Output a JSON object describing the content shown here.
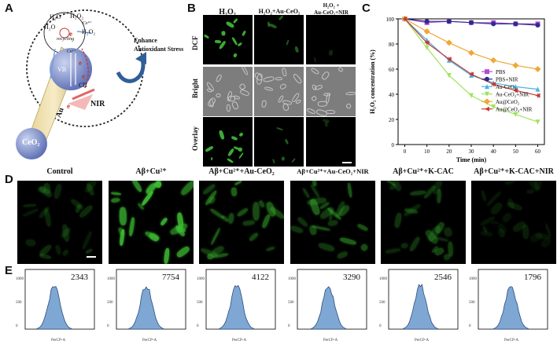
{
  "panel_labels": {
    "A": "A",
    "B": "B",
    "C": "C",
    "D": "D",
    "E": "E"
  },
  "panelA": {
    "texts": {
      "h2o_1": "H₂O",
      "h2o2_1": "H₂O₂",
      "h2o_2": "H₂O",
      "h2o2_2": "H₂O₂",
      "cb": "CB",
      "vb": "VB",
      "ce_ion": "Ce⁴⁺",
      "ce_ion2": "Ce³⁺",
      "cycle": "recycling",
      "enhance": "Enhance",
      "antioxidant": "Antioxidant Stress",
      "nir": "NIR",
      "au": "Au",
      "ceo2": "CeO₂",
      "electron": "e"
    }
  },
  "panelB": {
    "columns": [
      "H₂O₂",
      "H₂O₂+Au-CeO₂",
      "H₂O₂ +\nAu-CeO₂+NIR"
    ],
    "rows": [
      "DCF",
      "Bright",
      "Overlay"
    ]
  },
  "panelC": {
    "chart_data": {
      "type": "line",
      "xlabel": "Time (min)",
      "ylabel": "H₂O₂ concentration (%)",
      "x": [
        0,
        10,
        20,
        30,
        40,
        50,
        60
      ],
      "xlim": [
        -3,
        63
      ],
      "ylim": [
        0,
        100
      ],
      "xticks": [
        "0",
        "10",
        "20",
        "30",
        "40",
        "50",
        "60"
      ],
      "yticks": [
        "0",
        "20",
        "40",
        "60",
        "80",
        "100"
      ],
      "legend_position": "center-right",
      "series": [
        {
          "name": "PBS",
          "color": "#b54bd6",
          "marker": "square",
          "values": [
            100,
            97,
            98,
            97,
            97,
            96,
            96
          ]
        },
        {
          "name": "PBS+NIR",
          "color": "#2c2c8c",
          "marker": "circle",
          "values": [
            100,
            98,
            98,
            97,
            96,
            96,
            95
          ]
        },
        {
          "name": "Au-CeO₂",
          "color": "#4ab3e6",
          "marker": "triangle",
          "values": [
            100,
            83,
            67,
            55,
            49,
            46,
            44
          ]
        },
        {
          "name": "Au-CeO₂+NIR",
          "color": "#9fe35a",
          "marker": "triangle-down",
          "values": [
            100,
            77,
            55,
            39,
            30,
            24,
            18
          ]
        },
        {
          "name": "Au@CeO₂",
          "color": "#f0a834",
          "marker": "diamond",
          "values": [
            100,
            90,
            81,
            73,
            67,
            63,
            60
          ]
        },
        {
          "name": "Au@CeO₂+NIR",
          "color": "#c43a34",
          "marker": "triangle-left",
          "values": [
            100,
            81,
            68,
            56,
            48,
            43,
            39
          ]
        }
      ]
    }
  },
  "panelD": {
    "columns": [
      "Control",
      "Aβ+Cu²⁺",
      "Aβ+Cu²⁺+Au-CeO₂",
      "Aβ+Cu²⁺+Au-CeO₂+NIR",
      "Aβ+Cu²⁺+K-CAC",
      "Aβ+Cu²⁺+K-CAC+NIR"
    ],
    "intensity": [
      0.25,
      0.95,
      0.6,
      0.5,
      0.35,
      0.15
    ]
  },
  "panelE": {
    "counts": [
      "2343",
      "7754",
      "4122",
      "3290",
      "2546",
      "1796"
    ],
    "xlabel": "PerCP-A",
    "yticks": [
      "0",
      "500",
      "1000"
    ]
  }
}
